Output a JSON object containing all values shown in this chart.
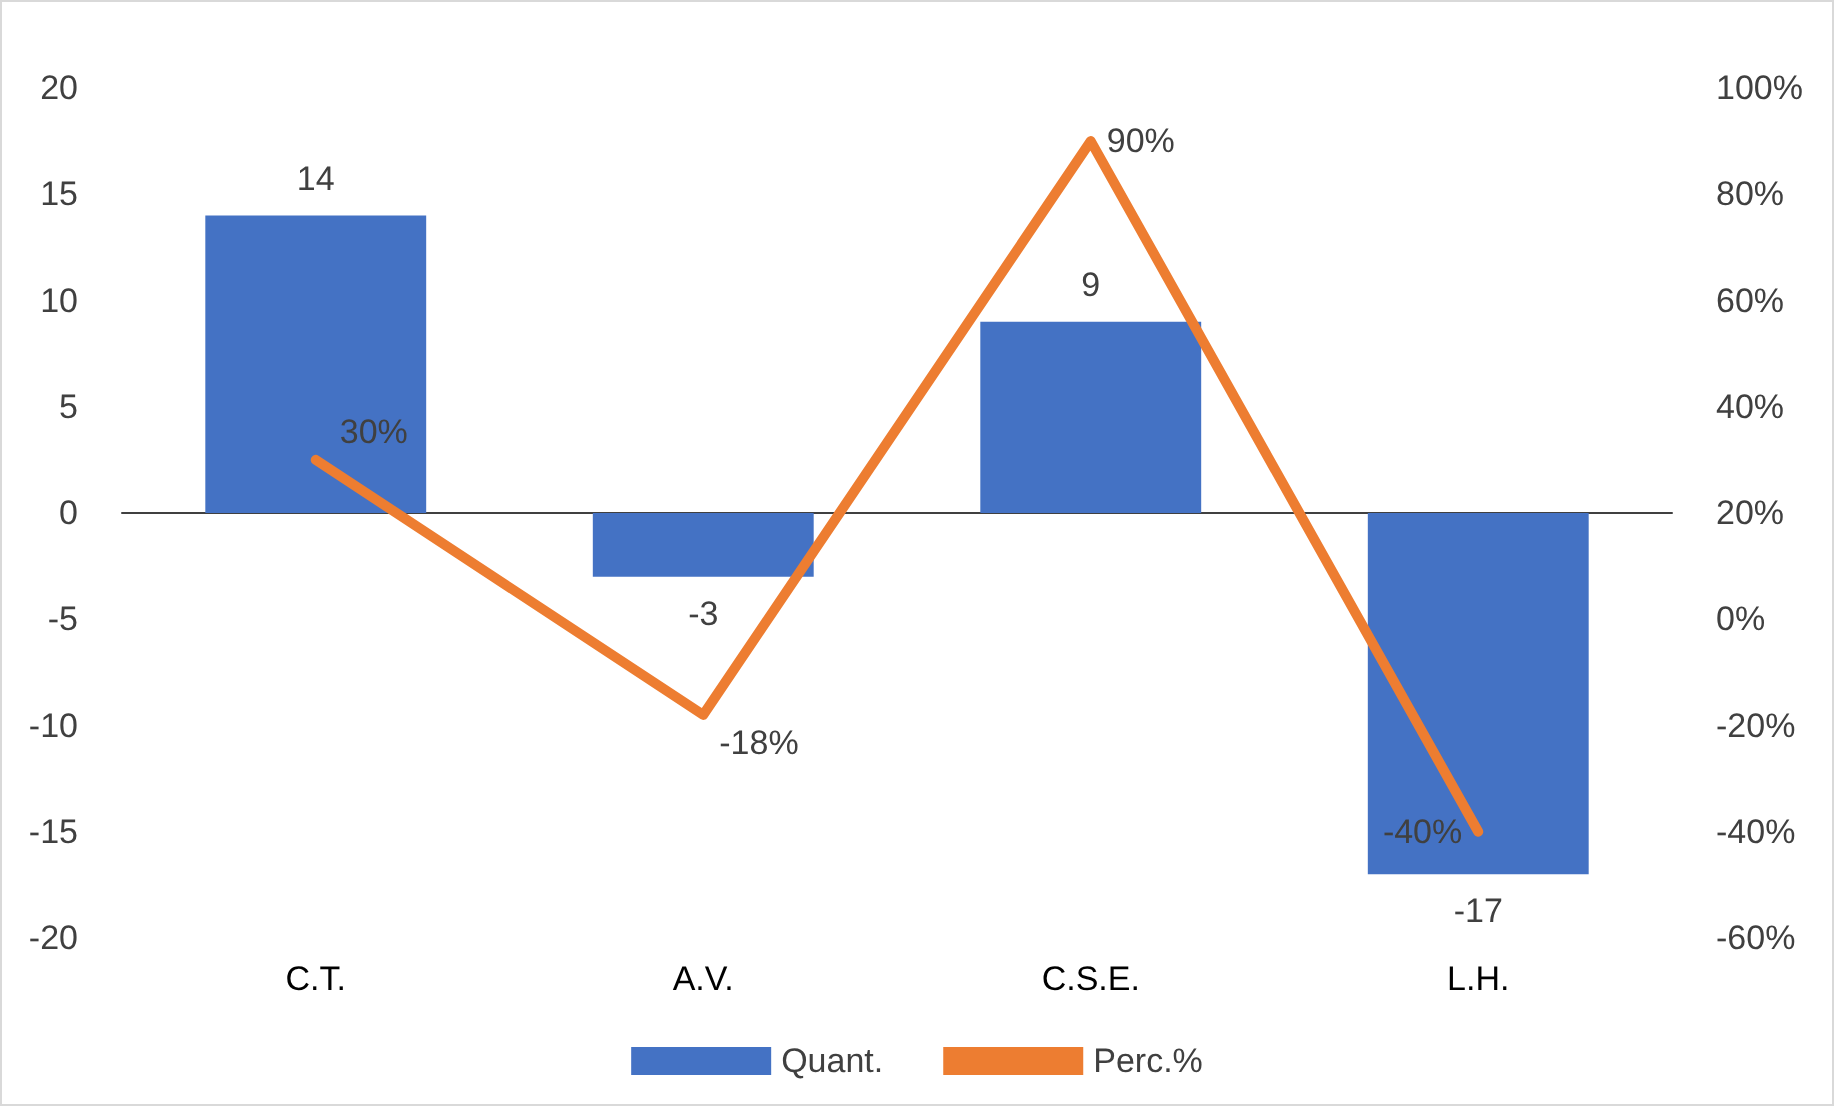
{
  "chart_data": {
    "type": "bar",
    "categories": [
      "C.T.",
      "A.V.",
      "C.S.E.",
      "L.H."
    ],
    "series": [
      {
        "name": "Quant.",
        "color": "#4472c4",
        "values": [
          14,
          -3,
          9,
          -17
        ],
        "value_labels": [
          "14",
          "-3",
          "9",
          "-17"
        ]
      },
      {
        "name": "Perc.%",
        "type": "line",
        "axis": "y2",
        "color": "#ed7d31",
        "values": [
          30,
          -18,
          90,
          -40
        ],
        "value_labels": [
          "30%",
          "-18%",
          "90%",
          "-40%"
        ]
      }
    ],
    "ylim": [
      -20,
      20
    ],
    "yticks": [
      -20,
      -15,
      -10,
      -5,
      0,
      5,
      10,
      15,
      20
    ],
    "y2lim": [
      -60,
      100
    ],
    "y2ticks": [
      {
        "value": -60,
        "label": "-60%"
      },
      {
        "value": -40,
        "label": "-40%"
      },
      {
        "value": -20,
        "label": "-20%"
      },
      {
        "value": 0,
        "label": "0%"
      },
      {
        "value": 20,
        "label": "20%"
      },
      {
        "value": 40,
        "label": "40%"
      },
      {
        "value": 60,
        "label": "60%"
      },
      {
        "value": 80,
        "label": "80%"
      },
      {
        "value": 100,
        "label": "100%"
      }
    ],
    "legend": "bottom",
    "marker": "none",
    "line_style": "solid"
  }
}
